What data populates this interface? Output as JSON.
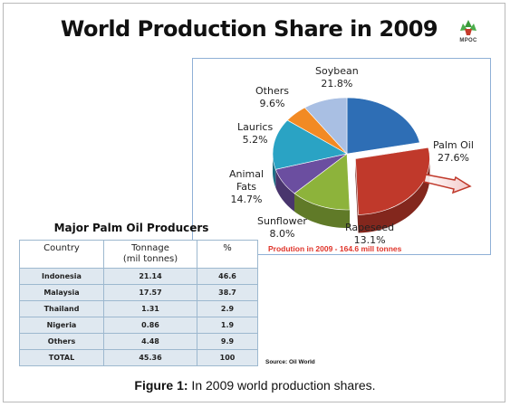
{
  "caption": {
    "label": "Figure 1:",
    "text": " In 2009 world production shares."
  },
  "chart_data": [
    {
      "type": "pie",
      "title": "World Production Share in 2009",
      "slices": [
        {
          "name": "Soybean",
          "value": 21.8,
          "display": "21.8%",
          "color": "#2e6eb5"
        },
        {
          "name": "Palm Oil",
          "value": 27.6,
          "display": "27.6%",
          "color": "#c0392b"
        },
        {
          "name": "Rapeseed",
          "value": 13.1,
          "display": "13.1%",
          "color": "#8db33b"
        },
        {
          "name": "Sunflower",
          "value": 8.0,
          "display": "8.0%",
          "color": "#6b4ea0"
        },
        {
          "name": "Animal Fats",
          "value": 14.7,
          "display": "14.7%",
          "color": "#2aa3c4"
        },
        {
          "name": "Laurics",
          "value": 5.2,
          "display": "5.2%",
          "color": "#f28a24"
        },
        {
          "name": "Others",
          "value": 9.6,
          "display": "9.6%",
          "color": "#a9bfe3"
        }
      ],
      "note": "Prodution in  2009 - 164.6 mill tonnes",
      "note_color": "#e0342a",
      "highlighted_slice": "Palm Oil"
    },
    {
      "type": "table",
      "title": "Major Palm Oil Producers",
      "columns": [
        "Country",
        "Tonnage\n(mil tonnes)",
        "%"
      ],
      "rows": [
        [
          "Indonesia",
          "21.14",
          "46.6"
        ],
        [
          "Malaysia",
          "17.57",
          "38.7"
        ],
        [
          "Thailand",
          "1.31",
          "2.9"
        ],
        [
          "Nigeria",
          "0.86",
          "1.9"
        ],
        [
          "Others",
          "4.48",
          "9.9"
        ],
        [
          "TOTAL",
          "45.36",
          "100"
        ]
      ],
      "source": "Source: Oil World"
    }
  ],
  "logo": {
    "text": "MPOC",
    "icon": "mpoc-logo-icon"
  }
}
